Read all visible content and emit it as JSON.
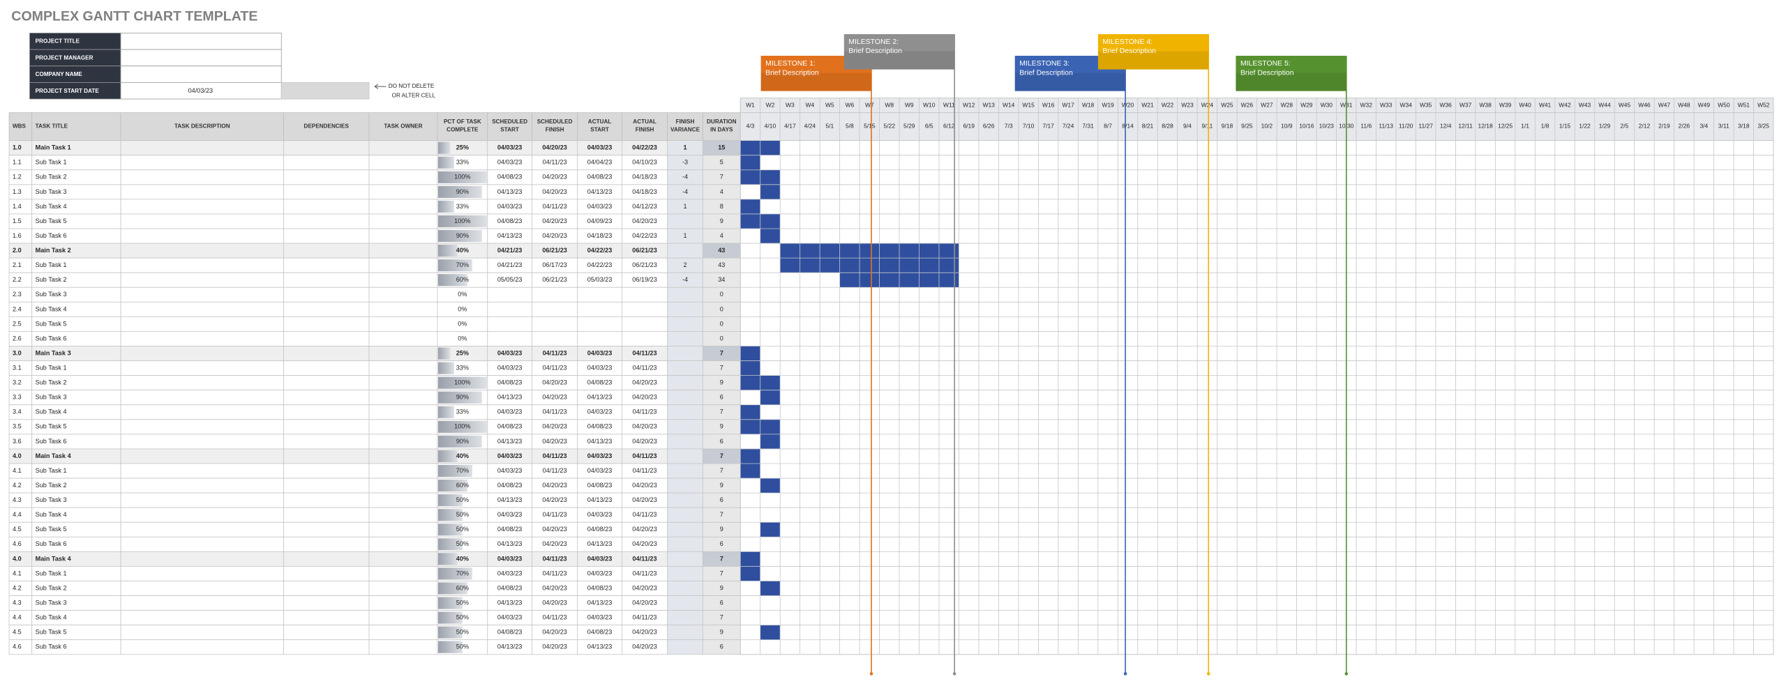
{
  "header": {
    "title": "COMPLEX GANTT CHART TEMPLATE"
  },
  "project_info": [
    {
      "label": "PROJECT TITLE",
      "value": null
    },
    {
      "label": "PROJECT MANAGER",
      "value": null
    },
    {
      "label": "COMPANY NAME",
      "value": null
    },
    {
      "label": "PROJECT START DATE",
      "value": "04/03/23"
    }
  ],
  "note": [
    "DO NOT DELETE",
    "OR ALTER CELL"
  ],
  "milestones": [
    {
      "label": "MILESTONE 1:",
      "description": "Brief Description",
      "color": "#e2711d"
    },
    {
      "label": "MILESTONE 2:",
      "description": "Brief Description",
      "color": "#8f8f8f"
    },
    {
      "label": "MILESTONE 3:",
      "description": "Brief Description",
      "color": "#3b63b3"
    },
    {
      "label": "MILESTONE 4:",
      "description": "Brief Description",
      "color": "#f0b400"
    },
    {
      "label": "MILESTONE 5:",
      "description": "Brief Description",
      "color": "#56912f"
    }
  ],
  "gantt": {
    "weeks": [
      "W1",
      "W2",
      "W3",
      "W4",
      "W5",
      "W6",
      "W7",
      "W8",
      "W9",
      "W10",
      "W11",
      "W12",
      "W13",
      "W14",
      "W15",
      "W16",
      "W17",
      "W18",
      "W19",
      "W20",
      "W21",
      "W22",
      "W23",
      "W24",
      "W25",
      "W26",
      "W27",
      "W28",
      "W29",
      "W30",
      "W31",
      "W32",
      "W33",
      "W34",
      "W35",
      "W36",
      "W37",
      "W38",
      "W39",
      "W40",
      "W41",
      "W42",
      "W43",
      "W44",
      "W45",
      "W46",
      "W47",
      "W48",
      "W49",
      "W50",
      "W51",
      "W52"
    ],
    "dates": [
      "4/3",
      "4/10",
      "4/17",
      "4/24",
      "5/1",
      "5/8",
      "5/15",
      "5/22",
      "5/29",
      "6/5",
      "6/12",
      "6/19",
      "6/26",
      "7/3",
      "7/10",
      "7/17",
      "7/24",
      "7/31",
      "8/7",
      "8/14",
      "8/21",
      "8/28",
      "9/4",
      "9/11",
      "9/18",
      "9/25",
      "10/2",
      "10/9",
      "10/16",
      "10/23",
      "10/30",
      "11/6",
      "11/13",
      "11/20",
      "11/27",
      "12/4",
      "12/11",
      "12/18",
      "12/25",
      "1/1",
      "1/8",
      "1/15",
      "1/22",
      "1/29",
      "2/5",
      "2/12",
      "2/19",
      "2/26",
      "3/4",
      "3/11",
      "3/18",
      "3/25"
    ],
    "bar_color": "#2f4f9e"
  },
  "table": {
    "columns": [
      "WBS",
      "TASK TITLE",
      "TASK DESCRIPTION",
      "DEPENDENCIES",
      "TASK OWNER",
      [
        "PCT OF TASK",
        "COMPLETE"
      ],
      [
        "SCHEDULED",
        "START"
      ],
      [
        "SCHEDULED",
        "FINISH"
      ],
      [
        "ACTUAL",
        "START"
      ],
      [
        "ACTUAL",
        "FINISH"
      ],
      [
        "FINISH",
        "VARIANCE"
      ],
      [
        "DURATION",
        "IN DAYS"
      ]
    ],
    "rows": [
      {
        "wbs": "1.0",
        "title": "Main Task 1",
        "main": true,
        "pct": 25,
        "pct_label": "25%",
        "scheduled_start": "04/03/23",
        "scheduled_finish": "04/20/23",
        "actual_start": "04/03/23",
        "actual_finish": "04/22/23",
        "variance": 1,
        "duration": 15,
        "gantt": [
          1,
          2
        ]
      },
      {
        "wbs": "1.1",
        "title": "Sub Task 1",
        "main": false,
        "pct": 33,
        "pct_label": "33%",
        "scheduled_start": "04/03/23",
        "scheduled_finish": "04/11/23",
        "actual_start": "04/04/23",
        "actual_finish": "04/10/23",
        "variance": -3,
        "duration": 5,
        "gantt": [
          1,
          1
        ]
      },
      {
        "wbs": "1.2",
        "title": "Sub Task 2",
        "main": false,
        "pct": 100,
        "pct_label": "100%",
        "scheduled_start": "04/08/23",
        "scheduled_finish": "04/20/23",
        "actual_start": "04/08/23",
        "actual_finish": "04/18/23",
        "variance": -4,
        "duration": 7,
        "gantt": [
          1,
          2
        ]
      },
      {
        "wbs": "1.3",
        "title": "Sub Task 3",
        "main": false,
        "pct": 90,
        "pct_label": "90%",
        "scheduled_start": "04/13/23",
        "scheduled_finish": "04/20/23",
        "actual_start": "04/13/23",
        "actual_finish": "04/18/23",
        "variance": -4,
        "duration": 4,
        "gantt": [
          2,
          2
        ]
      },
      {
        "wbs": "1.4",
        "title": "Sub Task 4",
        "main": false,
        "pct": 33,
        "pct_label": "33%",
        "scheduled_start": "04/03/23",
        "scheduled_finish": "04/11/23",
        "actual_start": "04/03/23",
        "actual_finish": "04/12/23",
        "variance": 1,
        "duration": 8,
        "gantt": [
          1,
          1
        ]
      },
      {
        "wbs": "1.5",
        "title": "Sub Task 5",
        "main": false,
        "pct": 100,
        "pct_label": "100%",
        "scheduled_start": "04/08/23",
        "scheduled_finish": "04/20/23",
        "actual_start": "04/09/23",
        "actual_finish": "04/20/23",
        "variance": null,
        "duration": 9,
        "gantt": [
          1,
          2
        ]
      },
      {
        "wbs": "1.6",
        "title": "Sub Task 6",
        "main": false,
        "pct": 90,
        "pct_label": "90%",
        "scheduled_start": "04/13/23",
        "scheduled_finish": "04/20/23",
        "actual_start": "04/18/23",
        "actual_finish": "04/22/23",
        "variance": 1,
        "duration": 4,
        "gantt": [
          2,
          2
        ]
      },
      {
        "wbs": "2.0",
        "title": "Main Task 2",
        "main": true,
        "pct": 40,
        "pct_label": "40%",
        "scheduled_start": "04/21/23",
        "scheduled_finish": "06/21/23",
        "actual_start": "04/22/23",
        "actual_finish": "06/21/23",
        "variance": null,
        "duration": 43,
        "gantt": [
          3,
          11
        ]
      },
      {
        "wbs": "2.1",
        "title": "Sub Task 1",
        "main": false,
        "pct": 70,
        "pct_label": "70%",
        "scheduled_start": "04/21/23",
        "scheduled_finish": "06/17/23",
        "actual_start": "04/22/23",
        "actual_finish": "06/21/23",
        "variance": 2,
        "duration": 43,
        "gantt": [
          3,
          11
        ]
      },
      {
        "wbs": "2.2",
        "title": "Sub Task 2",
        "main": false,
        "pct": 60,
        "pct_label": "60%",
        "scheduled_start": "05/05/23",
        "scheduled_finish": "06/21/23",
        "actual_start": "05/03/23",
        "actual_finish": "06/19/23",
        "variance": -4,
        "duration": 34,
        "gantt": [
          6,
          11
        ]
      },
      {
        "wbs": "2.3",
        "title": "Sub Task 3",
        "main": false,
        "pct": 0,
        "pct_label": "0%",
        "scheduled_start": null,
        "scheduled_finish": null,
        "actual_start": null,
        "actual_finish": null,
        "variance": null,
        "duration": 0,
        "gantt": null
      },
      {
        "wbs": "2.4",
        "title": "Sub Task 4",
        "main": false,
        "pct": 0,
        "pct_label": "0%",
        "scheduled_start": null,
        "scheduled_finish": null,
        "actual_start": null,
        "actual_finish": null,
        "variance": null,
        "duration": 0,
        "gantt": null
      },
      {
        "wbs": "2.5",
        "title": "Sub Task 5",
        "main": false,
        "pct": 0,
        "pct_label": "0%",
        "scheduled_start": null,
        "scheduled_finish": null,
        "actual_start": null,
        "actual_finish": null,
        "variance": null,
        "duration": 0,
        "gantt": null
      },
      {
        "wbs": "2.6",
        "title": "Sub Task 6",
        "main": false,
        "pct": 0,
        "pct_label": "0%",
        "scheduled_start": null,
        "scheduled_finish": null,
        "actual_start": null,
        "actual_finish": null,
        "variance": null,
        "duration": 0,
        "gantt": null
      },
      {
        "wbs": "3.0",
        "title": "Main Task 3",
        "main": true,
        "pct": 25,
        "pct_label": "25%",
        "scheduled_start": "04/03/23",
        "scheduled_finish": "04/11/23",
        "actual_start": "04/03/23",
        "actual_finish": "04/11/23",
        "variance": null,
        "duration": 7,
        "gantt": [
          1,
          1
        ]
      },
      {
        "wbs": "3.1",
        "title": "Sub Task 1",
        "main": false,
        "pct": 33,
        "pct_label": "33%",
        "scheduled_start": "04/03/23",
        "scheduled_finish": "04/11/23",
        "actual_start": "04/03/23",
        "actual_finish": "04/11/23",
        "variance": null,
        "duration": 7,
        "gantt": [
          1,
          1
        ]
      },
      {
        "wbs": "3.2",
        "title": "Sub Task 2",
        "main": false,
        "pct": 100,
        "pct_label": "100%",
        "scheduled_start": "04/08/23",
        "scheduled_finish": "04/20/23",
        "actual_start": "04/08/23",
        "actual_finish": "04/20/23",
        "variance": null,
        "duration": 9,
        "gantt": [
          1,
          2
        ]
      },
      {
        "wbs": "3.3",
        "title": "Sub Task 3",
        "main": false,
        "pct": 90,
        "pct_label": "90%",
        "scheduled_start": "04/13/23",
        "scheduled_finish": "04/20/23",
        "actual_start": "04/13/23",
        "actual_finish": "04/20/23",
        "variance": null,
        "duration": 6,
        "gantt": [
          2,
          2
        ]
      },
      {
        "wbs": "3.4",
        "title": "Sub Task 4",
        "main": false,
        "pct": 33,
        "pct_label": "33%",
        "scheduled_start": "04/03/23",
        "scheduled_finish": "04/11/23",
        "actual_start": "04/03/23",
        "actual_finish": "04/11/23",
        "variance": null,
        "duration": 7,
        "gantt": [
          1,
          1
        ]
      },
      {
        "wbs": "3.5",
        "title": "Sub Task 5",
        "main": false,
        "pct": 100,
        "pct_label": "100%",
        "scheduled_start": "04/08/23",
        "scheduled_finish": "04/20/23",
        "actual_start": "04/08/23",
        "actual_finish": "04/20/23",
        "variance": null,
        "duration": 9,
        "gantt": [
          1,
          2
        ]
      },
      {
        "wbs": "3.6",
        "title": "Sub Task 6",
        "main": false,
        "pct": 90,
        "pct_label": "90%",
        "scheduled_start": "04/13/23",
        "scheduled_finish": "04/20/23",
        "actual_start": "04/13/23",
        "actual_finish": "04/20/23",
        "variance": null,
        "duration": 6,
        "gantt": [
          2,
          2
        ]
      },
      {
        "wbs": "4.0",
        "title": "Main Task 4",
        "main": true,
        "pct": 40,
        "pct_label": "40%",
        "scheduled_start": "04/03/23",
        "scheduled_finish": "04/11/23",
        "actual_start": "04/03/23",
        "actual_finish": "04/11/23",
        "variance": null,
        "duration": 7,
        "gantt": [
          1,
          1
        ]
      },
      {
        "wbs": "4.1",
        "title": "Sub Task 1",
        "main": false,
        "pct": 70,
        "pct_label": "70%",
        "scheduled_start": "04/03/23",
        "scheduled_finish": "04/11/23",
        "actual_start": "04/03/23",
        "actual_finish": "04/11/23",
        "variance": null,
        "duration": 7,
        "gantt": [
          1,
          1
        ]
      },
      {
        "wbs": "4.2",
        "title": "Sub Task 2",
        "main": false,
        "pct": 60,
        "pct_label": "60%",
        "scheduled_start": "04/08/23",
        "scheduled_finish": "04/20/23",
        "actual_start": "04/08/23",
        "actual_finish": "04/20/23",
        "variance": null,
        "duration": 9,
        "gantt": [
          2,
          2
        ]
      },
      {
        "wbs": "4.3",
        "title": "Sub Task 3",
        "main": false,
        "pct": 50,
        "pct_label": "50%",
        "scheduled_start": "04/13/23",
        "scheduled_finish": "04/20/23",
        "actual_start": "04/13/23",
        "actual_finish": "04/20/23",
        "variance": null,
        "duration": 6,
        "gantt": null
      },
      {
        "wbs": "4.4",
        "title": "Sub Task 4",
        "main": false,
        "pct": 50,
        "pct_label": "50%",
        "scheduled_start": "04/03/23",
        "scheduled_finish": "04/11/23",
        "actual_start": "04/03/23",
        "actual_finish": "04/11/23",
        "variance": null,
        "duration": 7,
        "gantt": null
      },
      {
        "wbs": "4.5",
        "title": "Sub Task 5",
        "main": false,
        "pct": 50,
        "pct_label": "50%",
        "scheduled_start": "04/08/23",
        "scheduled_finish": "04/20/23",
        "actual_start": "04/08/23",
        "actual_finish": "04/20/23",
        "variance": null,
        "duration": 9,
        "gantt": [
          2,
          2
        ]
      },
      {
        "wbs": "4.6",
        "title": "Sub Task 6",
        "main": false,
        "pct": 50,
        "pct_label": "50%",
        "scheduled_start": "04/13/23",
        "scheduled_finish": "04/20/23",
        "actual_start": "04/13/23",
        "actual_finish": "04/20/23",
        "variance": null,
        "duration": 6,
        "gantt": null
      },
      {
        "wbs": "4.0",
        "title": "Main Task 4",
        "main": true,
        "pct": 40,
        "pct_label": "40%",
        "scheduled_start": "04/03/23",
        "scheduled_finish": "04/11/23",
        "actual_start": "04/03/23",
        "actual_finish": "04/11/23",
        "variance": null,
        "duration": 7,
        "gantt": [
          1,
          1
        ]
      },
      {
        "wbs": "4.1",
        "title": "Sub Task 1",
        "main": false,
        "pct": 70,
        "pct_label": "70%",
        "scheduled_start": "04/03/23",
        "scheduled_finish": "04/11/23",
        "actual_start": "04/03/23",
        "actual_finish": "04/11/23",
        "variance": null,
        "duration": 7,
        "gantt": [
          1,
          1
        ]
      },
      {
        "wbs": "4.2",
        "title": "Sub Task 2",
        "main": false,
        "pct": 60,
        "pct_label": "60%",
        "scheduled_start": "04/08/23",
        "scheduled_finish": "04/20/23",
        "actual_start": "04/08/23",
        "actual_finish": "04/20/23",
        "variance": null,
        "duration": 9,
        "gantt": [
          2,
          2
        ]
      },
      {
        "wbs": "4.3",
        "title": "Sub Task 3",
        "main": false,
        "pct": 50,
        "pct_label": "50%",
        "scheduled_start": "04/13/23",
        "scheduled_finish": "04/20/23",
        "actual_start": "04/13/23",
        "actual_finish": "04/20/23",
        "variance": null,
        "duration": 6,
        "gantt": null
      },
      {
        "wbs": "4.4",
        "title": "Sub Task 4",
        "main": false,
        "pct": 50,
        "pct_label": "50%",
        "scheduled_start": "04/03/23",
        "scheduled_finish": "04/11/23",
        "actual_start": "04/03/23",
        "actual_finish": "04/11/23",
        "variance": null,
        "duration": 7,
        "gantt": null
      },
      {
        "wbs": "4.5",
        "title": "Sub Task 5",
        "main": false,
        "pct": 50,
        "pct_label": "50%",
        "scheduled_start": "04/08/23",
        "scheduled_finish": "04/20/23",
        "actual_start": "04/08/23",
        "actual_finish": "04/20/23",
        "variance": null,
        "duration": 9,
        "gantt": [
          2,
          2
        ]
      },
      {
        "wbs": "4.6",
        "title": "Sub Task 6",
        "main": false,
        "pct": 50,
        "pct_label": "50%",
        "scheduled_start": "04/13/23",
        "scheduled_finish": "04/20/23",
        "actual_start": "04/13/23",
        "actual_finish": "04/20/23",
        "variance": null,
        "duration": 6,
        "gantt": null
      }
    ]
  }
}
